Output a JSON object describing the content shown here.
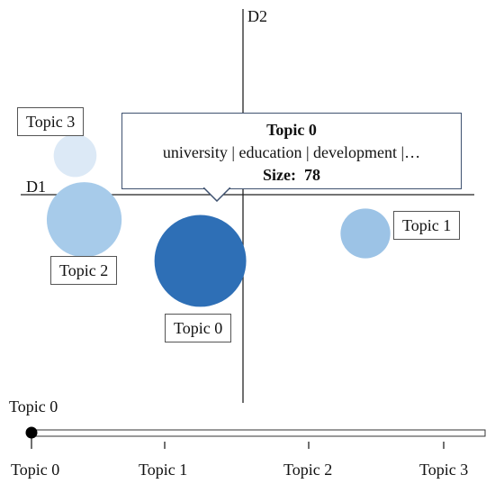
{
  "chart_data": {
    "type": "scatter",
    "title": "",
    "xlabel": "D1",
    "ylabel": "D2",
    "points": [
      {
        "label": "Topic 0",
        "x": -0.42,
        "y": -0.75,
        "size": 78,
        "color": "#2e6fb6"
      },
      {
        "label": "Topic 1",
        "x": 1.4,
        "y": -0.45,
        "size": 23,
        "color": "#9cc3e6"
      },
      {
        "label": "Topic 2",
        "x": -1.7,
        "y": -0.3,
        "size": 52,
        "color": "#a7cbea"
      },
      {
        "label": "Topic 3",
        "x": -1.8,
        "y": 0.4,
        "size": 17,
        "color": "#dce9f6"
      }
    ],
    "xlim": [
      -2.4,
      2.6
    ],
    "ylim": [
      -2.3,
      2.0
    ]
  },
  "tooltip": {
    "title": "Topic 0",
    "words": "university | education | development |…",
    "size_label": "Size:",
    "size_value": "78"
  },
  "slider": {
    "current_label": "Topic 0",
    "ticks": [
      "Topic 0",
      "Topic 1",
      "Topic 2",
      "Topic 3"
    ],
    "position": 0
  }
}
